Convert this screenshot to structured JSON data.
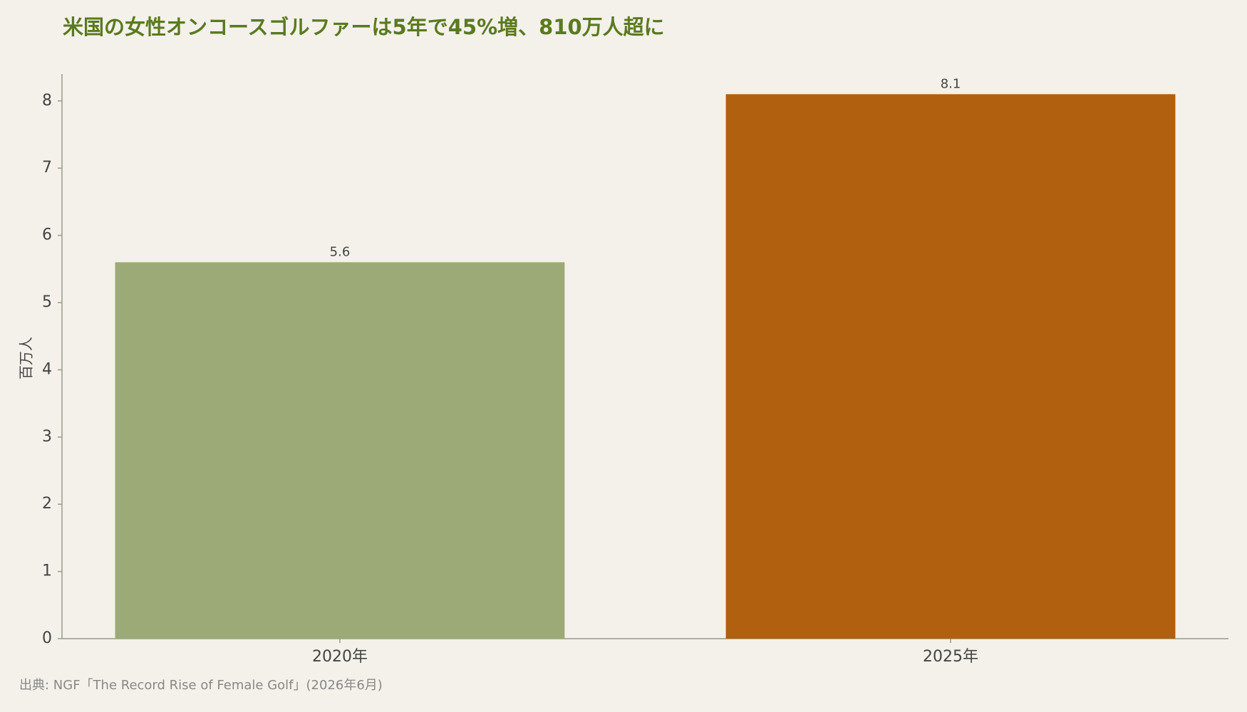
{
  "chart_data": {
    "type": "bar",
    "title": "米国の女性オンコースゴルファーは5年で45%増、810万人超に",
    "y_label": "百万人",
    "source": "出典: NGF「The Record Rise of Female Golf」(2026年6月)",
    "categories": [
      "2020年",
      "2025年"
    ],
    "values": [
      5.6,
      8.1
    ],
    "colors": [
      "#9caa77",
      "#b0600f"
    ],
    "ylim": [
      0,
      8.4
    ],
    "yticks": [
      0,
      1,
      2,
      3,
      4,
      5,
      6,
      7,
      8
    ],
    "grid": false
  }
}
